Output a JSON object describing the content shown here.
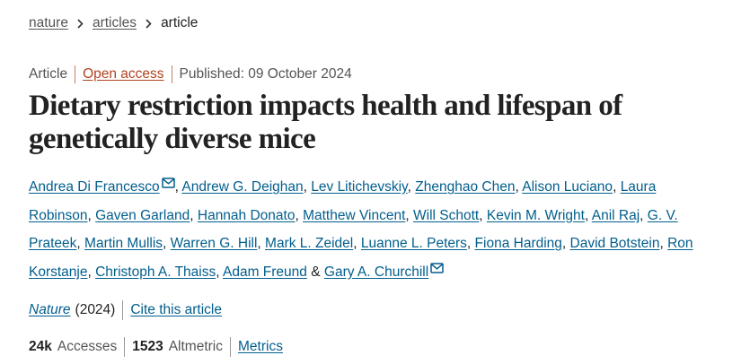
{
  "breadcrumb": [
    "nature",
    "articles",
    "article"
  ],
  "meta": {
    "type": "Article",
    "access": "Open access",
    "published": "Published: 09 October 2024"
  },
  "title": "Dietary restriction impacts health and lifespan of genetically diverse mice",
  "authors": [
    {
      "name": "Andrea Di Francesco",
      "corresponding": true
    },
    {
      "name": "Andrew G. Deighan"
    },
    {
      "name": "Lev Litichevskiy"
    },
    {
      "name": "Zhenghao Chen"
    },
    {
      "name": "Alison Luciano"
    },
    {
      "name": "Laura Robinson"
    },
    {
      "name": "Gaven Garland"
    },
    {
      "name": "Hannah Donato"
    },
    {
      "name": "Matthew Vincent"
    },
    {
      "name": "Will Schott"
    },
    {
      "name": "Kevin M. Wright"
    },
    {
      "name": "Anil Raj"
    },
    {
      "name": "G. V. Prateek"
    },
    {
      "name": "Martin Mullis"
    },
    {
      "name": "Warren G. Hill"
    },
    {
      "name": "Mark L. Zeidel"
    },
    {
      "name": "Luanne L. Peters"
    },
    {
      "name": "Fiona Harding"
    },
    {
      "name": "David Botstein"
    },
    {
      "name": "Ron Korstanje"
    },
    {
      "name": "Christoph A. Thaiss"
    },
    {
      "name": "Adam Freund"
    },
    {
      "name": "Gary A. Churchill",
      "corresponding": true
    }
  ],
  "author_separator": ",",
  "last_author_separator": "&",
  "citation": {
    "journal": "Nature",
    "year": "(2024)",
    "cite": "Cite this article"
  },
  "metrics": {
    "accesses_value": "24k",
    "accesses_label": "Accesses",
    "altmetric_value": "1523",
    "altmetric_label": "Altmetric",
    "link": "Metrics"
  }
}
